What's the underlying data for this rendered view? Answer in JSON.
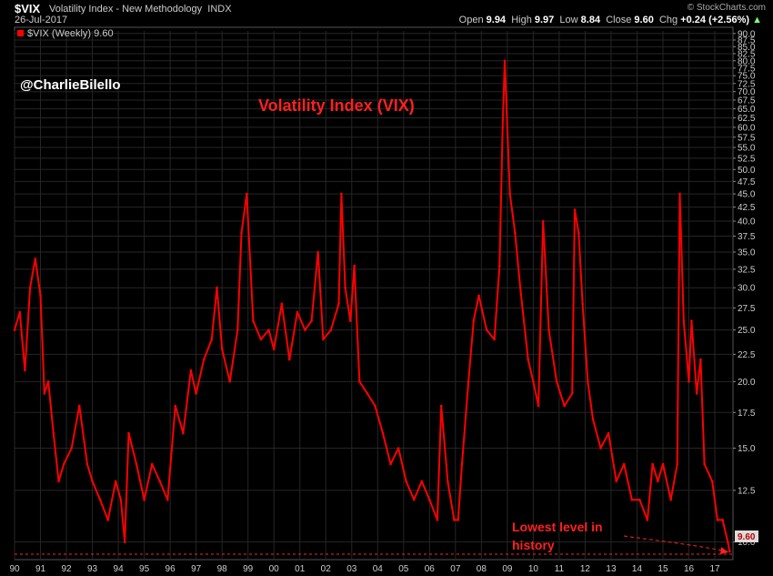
{
  "header": {
    "symbol": "$VIX",
    "description": "Volatility Index - New Methodology",
    "exchange": "INDX",
    "date": "26-Jul-2017",
    "copyright": "© StockCharts.com",
    "open_label": "Open",
    "open": "9.94",
    "high_label": "High",
    "high": "9.97",
    "low_label": "Low",
    "low": "8.84",
    "close_label": "Close",
    "close": "9.60",
    "chg_label": "Chg",
    "chg": "+0.24 (+2.56%)"
  },
  "legend_label": "$VIX (Weekly) 9.60",
  "twitter_handle": "@CharlieBilello",
  "colors": {
    "series": "#ff0000",
    "annotation": "#ff2020",
    "grid": "#333333",
    "background": "#000000",
    "axis_text": "#cccccc"
  },
  "chart_data": {
    "type": "line",
    "title": "Volatility Index (VIX)",
    "series": [
      {
        "name": "$VIX (Weekly)",
        "x": [
          1990.0,
          1990.2,
          1990.4,
          1990.6,
          1990.8,
          1991.0,
          1991.15,
          1991.3,
          1991.5,
          1991.7,
          1991.9,
          1992.2,
          1992.5,
          1992.8,
          1993.0,
          1993.3,
          1993.6,
          1993.9,
          1994.1,
          1994.25,
          1994.4,
          1994.7,
          1995.0,
          1995.3,
          1995.6,
          1995.9,
          1996.2,
          1996.5,
          1996.8,
          1997.0,
          1997.3,
          1997.6,
          1997.8,
          1998.0,
          1998.3,
          1998.6,
          1998.75,
          1998.95,
          1999.2,
          1999.5,
          1999.8,
          2000.0,
          2000.3,
          2000.6,
          2000.9,
          2001.2,
          2001.45,
          2001.7,
          2001.9,
          2002.2,
          2002.5,
          2002.6,
          2002.75,
          2002.95,
          2003.1,
          2003.3,
          2003.6,
          2003.9,
          2004.2,
          2004.5,
          2004.8,
          2005.1,
          2005.4,
          2005.7,
          2006.0,
          2006.3,
          2006.45,
          2006.7,
          2006.95,
          2007.1,
          2007.25,
          2007.5,
          2007.7,
          2007.9,
          2008.2,
          2008.5,
          2008.7,
          2008.82,
          2008.9,
          2009.1,
          2009.3,
          2009.5,
          2009.8,
          2010.0,
          2010.2,
          2010.38,
          2010.6,
          2010.9,
          2011.2,
          2011.5,
          2011.6,
          2011.75,
          2011.9,
          2012.1,
          2012.3,
          2012.6,
          2012.9,
          2013.2,
          2013.5,
          2013.8,
          2014.1,
          2014.4,
          2014.6,
          2014.8,
          2015.0,
          2015.3,
          2015.55,
          2015.65,
          2015.8,
          2016.0,
          2016.1,
          2016.3,
          2016.45,
          2016.6,
          2016.9,
          2017.1,
          2017.3,
          2017.5,
          2017.57
        ],
        "values": [
          25,
          27,
          21,
          30,
          34,
          29,
          19,
          20,
          16,
          13,
          14,
          15,
          18,
          14,
          13,
          12,
          11,
          13,
          12,
          10,
          16,
          14,
          12,
          14,
          13,
          12,
          18,
          16,
          21,
          19,
          22,
          24,
          30,
          23,
          20,
          25,
          38,
          45,
          26,
          24,
          25,
          23,
          28,
          22,
          27,
          25,
          26,
          35,
          24,
          25,
          28,
          45,
          30,
          26,
          33,
          20,
          19,
          18,
          16,
          14,
          15,
          13,
          12,
          13,
          12,
          11,
          18,
          13,
          11,
          11,
          14,
          20,
          26,
          29,
          25,
          24,
          33,
          60,
          80,
          45,
          38,
          30,
          22,
          20,
          18,
          40,
          25,
          20,
          18,
          19,
          42,
          38,
          28,
          20,
          17,
          15,
          16,
          13,
          14,
          12,
          12,
          11,
          14,
          13,
          14,
          12,
          14,
          45,
          26,
          20,
          26,
          19,
          22,
          14,
          13,
          11,
          11,
          10,
          9.6
        ]
      }
    ],
    "xlim": [
      1990,
      2017.7
    ],
    "ylim": [
      9.6,
      91
    ],
    "scale": "log",
    "x_tick_labels": [
      "90",
      "91",
      "92",
      "93",
      "94",
      "95",
      "96",
      "97",
      "98",
      "99",
      "00",
      "01",
      "02",
      "03",
      "04",
      "05",
      "06",
      "07",
      "08",
      "09",
      "10",
      "11",
      "12",
      "13",
      "14",
      "15",
      "16",
      "17"
    ],
    "y_tick_labels": [
      "10.0",
      "12.5",
      "15.0",
      "17.5",
      "20.0",
      "22.5",
      "25.0",
      "27.5",
      "30.0",
      "32.5",
      "35.0",
      "37.5",
      "40.0",
      "42.5",
      "45.0",
      "47.5",
      "50.0",
      "52.5",
      "55.0",
      "57.5",
      "60.0",
      "62.5",
      "65.0",
      "67.5",
      "70.0",
      "72.5",
      "75.0",
      "77.5",
      "80.0",
      "82.5",
      "85.0",
      "87.5",
      "90.0"
    ],
    "last_value_label": "9.60",
    "annotation": "Lowest level in history",
    "grid": true,
    "legend": "top-left"
  }
}
